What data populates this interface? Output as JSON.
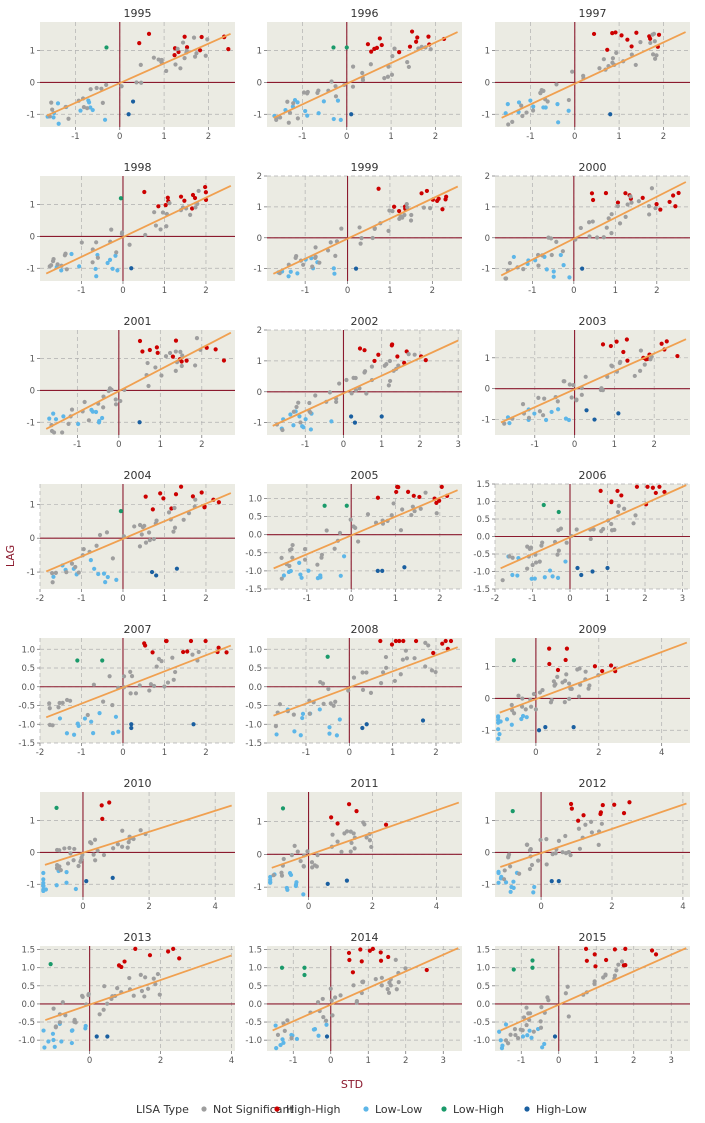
{
  "chart_data": {
    "type": "scatter",
    "figure": "Moran scatterplot facets by year",
    "xlabel": "STD",
    "ylabel": "LAG",
    "legend": {
      "title": "LISA Type",
      "position": "bottom",
      "entries": [
        {
          "label": "Not Significant",
          "color": "#9e9e9e"
        },
        {
          "label": "High-High",
          "color": "#cc0000"
        },
        {
          "label": "Low-Low",
          "color": "#5db6e8"
        },
        {
          "label": "Low-High",
          "color": "#1a9a6a"
        },
        {
          "label": "High-Low",
          "color": "#1a5fa0"
        }
      ]
    },
    "colors": {
      "panel_bg": "#ebebe3",
      "ref_line": "#8b1a2e",
      "fit_line": "#f0a050",
      "grid": "#b0b0b0"
    },
    "panels": [
      {
        "title": "1995",
        "xlim": [
          -1.8,
          2.6
        ],
        "ylim": [
          -1.4,
          1.9
        ],
        "xticks": [
          -1,
          0,
          1,
          2
        ],
        "yticks": [
          -1,
          0,
          1
        ],
        "slope": 0.62,
        "intercept": -0.02,
        "seed": 1,
        "hh": 12,
        "ll": 12,
        "lh": [
          [
            -0.3,
            1.1
          ]
        ],
        "hl": [
          [
            0.3,
            -0.6
          ],
          [
            0.2,
            -1.0
          ]
        ]
      },
      {
        "title": "1996",
        "xlim": [
          -1.8,
          2.6
        ],
        "ylim": [
          -1.4,
          1.9
        ],
        "xticks": [
          -1,
          0,
          1,
          2
        ],
        "yticks": [
          -1,
          0,
          1
        ],
        "slope": 0.65,
        "intercept": -0.04,
        "seed": 2,
        "hh": 14,
        "ll": 12,
        "lh": [
          [
            -0.3,
            1.1
          ],
          [
            0.0,
            1.1
          ]
        ],
        "hl": [
          [
            0.1,
            -1.0
          ]
        ]
      },
      {
        "title": "1997",
        "xlim": [
          -1.8,
          2.6
        ],
        "ylim": [
          -1.4,
          1.9
        ],
        "xticks": [
          -1,
          0,
          1,
          2
        ],
        "yticks": [
          -1,
          0,
          1
        ],
        "slope": 0.65,
        "intercept": -0.04,
        "seed": 3,
        "hh": 12,
        "ll": 11,
        "lh": [],
        "hl": [
          [
            0.8,
            -1.0
          ]
        ]
      },
      {
        "title": "1998",
        "xlim": [
          -2.0,
          2.7
        ],
        "ylim": [
          -1.4,
          1.9
        ],
        "xticks": [
          -1,
          0,
          1,
          2
        ],
        "yticks": [
          -1,
          0,
          1
        ],
        "slope": 0.62,
        "intercept": -0.02,
        "seed": 4,
        "hh": 13,
        "ll": 12,
        "lh": [
          [
            -0.05,
            1.2
          ]
        ],
        "hl": [
          [
            0.2,
            -1.0
          ]
        ]
      },
      {
        "title": "1999",
        "xlim": [
          -1.9,
          2.7
        ],
        "ylim": [
          -1.4,
          2.0
        ],
        "xticks": [
          -1,
          0,
          1,
          2
        ],
        "yticks": [
          -1,
          0,
          1,
          2
        ],
        "slope": 0.65,
        "intercept": -0.03,
        "seed": 5,
        "hh": 13,
        "ll": 11,
        "lh": [],
        "hl": [
          [
            0.2,
            -1.0
          ]
        ]
      },
      {
        "title": "2000",
        "xlim": [
          -1.9,
          2.8
        ],
        "ylim": [
          -1.4,
          2.0
        ],
        "xticks": [
          -1,
          0,
          1,
          2
        ],
        "yticks": [
          -1,
          0,
          1,
          2
        ],
        "slope": 0.68,
        "intercept": -0.03,
        "seed": 6,
        "hh": 14,
        "ll": 11,
        "lh": [],
        "hl": [
          [
            0.2,
            -1.0
          ]
        ]
      },
      {
        "title": "2001",
        "xlim": [
          -1.9,
          2.8
        ],
        "ylim": [
          -1.4,
          1.9
        ],
        "xticks": [
          -1,
          0,
          1,
          2
        ],
        "yticks": [
          -1,
          0,
          1
        ],
        "slope": 0.68,
        "intercept": -0.02,
        "seed": 7,
        "hh": 13,
        "ll": 11,
        "lh": [],
        "hl": [
          [
            0.5,
            -1.0
          ]
        ]
      },
      {
        "title": "2002",
        "xlim": [
          -2.0,
          3.1
        ],
        "ylim": [
          -1.4,
          2.0
        ],
        "xticks": [
          -1,
          0,
          1,
          2,
          3
        ],
        "yticks": [
          -1,
          0,
          1,
          2
        ],
        "slope": 0.57,
        "intercept": -0.05,
        "seed": 8,
        "hh": 11,
        "ll": 12,
        "lh": [],
        "hl": [
          [
            0.2,
            -0.8
          ],
          [
            0.3,
            -1.0
          ],
          [
            1.0,
            -0.8
          ]
        ]
      },
      {
        "title": "2003",
        "xlim": [
          -2.0,
          2.9
        ],
        "ylim": [
          -1.5,
          1.9
        ],
        "xticks": [
          -1,
          0,
          1,
          2
        ],
        "yticks": [
          -1,
          0,
          1
        ],
        "slope": 0.58,
        "intercept": -0.02,
        "seed": 9,
        "hh": 14,
        "ll": 10,
        "lh": [],
        "hl": [
          [
            0.3,
            -0.7
          ],
          [
            0.5,
            -1.0
          ],
          [
            1.1,
            -0.8
          ]
        ]
      },
      {
        "title": "2004",
        "xlim": [
          -2.0,
          2.7
        ],
        "ylim": [
          -1.5,
          1.6
        ],
        "xticks": [
          -2,
          -1,
          0,
          1,
          2
        ],
        "yticks": [
          -1,
          0,
          1
        ],
        "slope": 0.52,
        "intercept": -0.02,
        "seed": 10,
        "hh": 13,
        "ll": 12,
        "lh": [
          [
            -0.05,
            0.8
          ]
        ],
        "hl": [
          [
            0.7,
            -1.0
          ],
          [
            0.8,
            -1.1
          ],
          [
            1.3,
            -0.9
          ]
        ]
      },
      {
        "title": "2005",
        "xlim": [
          -1.9,
          2.5
        ],
        "ylim": [
          -1.5,
          1.4
        ],
        "xticks": [
          -1,
          0,
          1,
          2
        ],
        "yticks": [
          -1.5,
          -1.0,
          -0.5,
          0.0,
          0.5,
          1.0
        ],
        "slope": 0.52,
        "intercept": -0.02,
        "seed": 11,
        "hh": 12,
        "ll": 12,
        "lh": [
          [
            -0.6,
            0.8
          ],
          [
            -0.1,
            0.8
          ]
        ],
        "hl": [
          [
            0.6,
            -1.0
          ],
          [
            0.7,
            -1.0
          ],
          [
            1.2,
            -0.9
          ]
        ]
      },
      {
        "title": "2006",
        "xlim": [
          -2.0,
          3.2
        ],
        "ylim": [
          -1.5,
          1.5
        ],
        "xticks": [
          -2,
          -1,
          0,
          1,
          2,
          3
        ],
        "yticks": [
          -1.5,
          -1.0,
          -0.5,
          0.0,
          0.5,
          1.0,
          1.5
        ],
        "slope": 0.48,
        "intercept": -0.02,
        "seed": 12,
        "hh": 12,
        "ll": 11,
        "lh": [
          [
            -0.7,
            0.9
          ],
          [
            -0.3,
            0.7
          ]
        ],
        "hl": [
          [
            0.2,
            -0.9
          ],
          [
            0.3,
            -1.1
          ],
          [
            0.6,
            -1.0
          ],
          [
            1.0,
            -0.9
          ]
        ]
      },
      {
        "title": "2007",
        "xlim": [
          -2.0,
          2.7
        ],
        "ylim": [
          -1.5,
          1.3
        ],
        "xticks": [
          -2,
          -1,
          0,
          1,
          2
        ],
        "yticks": [
          -1.5,
          -1.0,
          -0.5,
          0.0,
          0.5,
          1.0
        ],
        "slope": 0.43,
        "intercept": -0.02,
        "seed": 13,
        "hh": 12,
        "ll": 12,
        "lh": [
          [
            -1.1,
            0.7
          ],
          [
            -0.5,
            0.7
          ]
        ],
        "hl": [
          [
            0.2,
            -1.0
          ],
          [
            0.2,
            -1.1
          ],
          [
            1.7,
            -1.0
          ]
        ]
      },
      {
        "title": "2008",
        "xlim": [
          -1.9,
          2.6
        ],
        "ylim": [
          -1.5,
          1.3
        ],
        "xticks": [
          -1,
          0,
          1,
          2
        ],
        "yticks": [
          -1.5,
          -1.0,
          -0.5,
          0.0,
          0.5,
          1.0
        ],
        "slope": 0.43,
        "intercept": -0.02,
        "seed": 14,
        "hh": 11,
        "ll": 12,
        "lh": [
          [
            -0.5,
            0.8
          ]
        ],
        "hl": [
          [
            0.3,
            -1.1
          ],
          [
            0.4,
            -1.0
          ],
          [
            1.7,
            -0.9
          ]
        ]
      },
      {
        "title": "2009",
        "xlim": [
          -1.3,
          4.9
        ],
        "ylim": [
          -1.4,
          1.9
        ],
        "xticks": [
          0,
          2,
          4
        ],
        "yticks": [
          -1,
          0,
          1
        ],
        "slope": 0.37,
        "intercept": -0.02,
        "seed": 15,
        "hh": 10,
        "ll": 13,
        "lh": [
          [
            -0.7,
            1.2
          ]
        ],
        "hl": [
          [
            0.1,
            -1.0
          ],
          [
            0.3,
            -0.9
          ],
          [
            1.2,
            -0.9
          ]
        ]
      },
      {
        "title": "2010",
        "xlim": [
          -1.3,
          4.6
        ],
        "ylim": [
          -1.4,
          1.9
        ],
        "xticks": [
          0,
          2,
          4
        ],
        "yticks": [
          -1,
          0,
          1
        ],
        "slope": 0.33,
        "intercept": -0.01,
        "seed": 16,
        "hh": 3,
        "ll": 14,
        "lh": [
          [
            -0.8,
            1.4
          ]
        ],
        "hl": [
          [
            0.1,
            -0.9
          ],
          [
            0.9,
            -0.8
          ]
        ]
      },
      {
        "title": "2011",
        "xlim": [
          -1.3,
          4.8
        ],
        "ylim": [
          -1.3,
          1.9
        ],
        "xticks": [
          0,
          2,
          4
        ],
        "yticks": [
          -1,
          0,
          1
        ],
        "slope": 0.34,
        "intercept": -0.02,
        "seed": 17,
        "hh": 5,
        "ll": 13,
        "lh": [
          [
            -0.8,
            1.4
          ]
        ],
        "hl": [
          [
            0.6,
            -0.9
          ],
          [
            1.2,
            -0.8
          ]
        ]
      },
      {
        "title": "2012",
        "xlim": [
          -1.3,
          4.2
        ],
        "ylim": [
          -1.4,
          1.9
        ],
        "xticks": [
          0,
          2,
          4
        ],
        "yticks": [
          -1,
          0,
          1
        ],
        "slope": 0.38,
        "intercept": -0.02,
        "seed": 18,
        "hh": 10,
        "ll": 13,
        "lh": [
          [
            -0.8,
            1.3
          ]
        ],
        "hl": [
          [
            0.3,
            -0.9
          ],
          [
            0.5,
            -0.9
          ]
        ]
      },
      {
        "title": "2013",
        "xlim": [
          -1.4,
          4.1
        ],
        "ylim": [
          -1.3,
          1.6
        ],
        "xticks": [
          0,
          2,
          4
        ],
        "yticks": [
          -1.0,
          -0.5,
          0.0,
          0.5,
          1.0,
          1.5
        ],
        "slope": 0.34,
        "intercept": -0.02,
        "seed": 19,
        "hh": 8,
        "ll": 13,
        "lh": [
          [
            -1.1,
            1.1
          ]
        ],
        "hl": [
          [
            0.2,
            -0.9
          ],
          [
            0.5,
            -0.9
          ]
        ]
      },
      {
        "title": "2014",
        "xlim": [
          -1.7,
          3.5
        ],
        "ylim": [
          -1.3,
          1.6
        ],
        "xticks": [
          -1,
          0,
          1,
          2,
          3
        ],
        "yticks": [
          -1.0,
          -0.5,
          0.0,
          0.5,
          1.0,
          1.5
        ],
        "slope": 0.46,
        "intercept": -0.02,
        "seed": 20,
        "hh": 11,
        "ll": 12,
        "lh": [
          [
            -1.3,
            1.0
          ],
          [
            -0.7,
            0.8
          ],
          [
            -0.7,
            1.0
          ]
        ],
        "hl": [
          [
            -0.1,
            -0.9
          ]
        ]
      },
      {
        "title": "2015",
        "xlim": [
          -1.7,
          3.5
        ],
        "ylim": [
          -1.3,
          1.6
        ],
        "xticks": [
          -1,
          0,
          1,
          2,
          3
        ],
        "yticks": [
          -1.0,
          -0.5,
          0.0,
          0.5,
          1.0,
          1.5
        ],
        "slope": 0.46,
        "intercept": -0.02,
        "seed": 21,
        "hh": 11,
        "ll": 12,
        "lh": [
          [
            -1.2,
            0.95
          ],
          [
            -0.7,
            1.2
          ],
          [
            -0.7,
            1.0
          ]
        ],
        "hl": [
          [
            -0.1,
            -0.9
          ]
        ]
      }
    ]
  }
}
